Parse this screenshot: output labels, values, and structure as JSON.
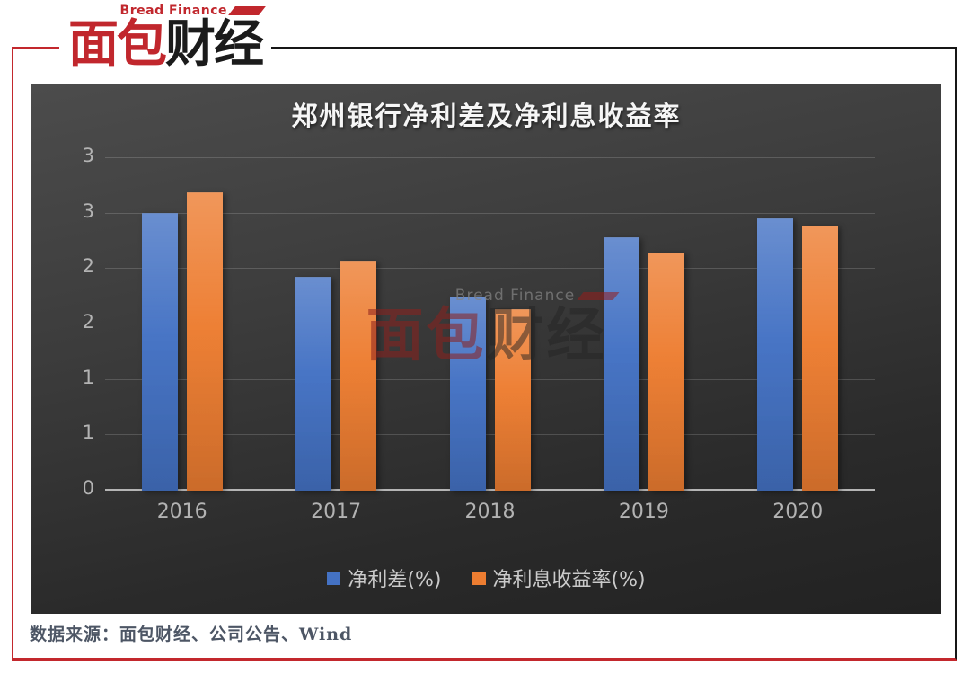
{
  "logo": {
    "brand_en": "Bread Finance",
    "chars": [
      {
        "text": "面",
        "color": "#c1272d"
      },
      {
        "text": "包",
        "color": "#c1272d"
      },
      {
        "text": "财",
        "color": "#1b1b1b"
      },
      {
        "text": "经",
        "color": "#1b1b1b"
      }
    ]
  },
  "chart_data": {
    "type": "bar",
    "title": "郑州银行净利差及净利息收益率",
    "categories": [
      "2016",
      "2017",
      "2018",
      "2019",
      "2020"
    ],
    "series": [
      {
        "name": "净利差(%)",
        "color": "#4472c4",
        "values": [
          2.5,
          1.92,
          1.74,
          2.28,
          2.45
        ]
      },
      {
        "name": "净利息收益率(%)",
        "color": "#ed7d31",
        "values": [
          2.68,
          2.07,
          1.63,
          2.14,
          2.38
        ]
      }
    ],
    "ylim": [
      0,
      3
    ],
    "ytick_interval": 0.5,
    "ytick_labels_displayed": [
      "0",
      "1",
      "1",
      "2",
      "2",
      "3",
      "3"
    ],
    "grid": "horizontal",
    "legend_position": "bottom",
    "panel_background": "#3a3a3a",
    "text_color": "#b3b3b3"
  },
  "watermark": {
    "en": "Bread Finance",
    "cn_red": "面包",
    "cn_gray": "财经",
    "red_color": "rgba(140,32,30,0.55)",
    "gray_color": "rgba(35,35,35,0.50)"
  },
  "footer": {
    "source": "数据来源：面包财经、公司公告、Wind"
  }
}
